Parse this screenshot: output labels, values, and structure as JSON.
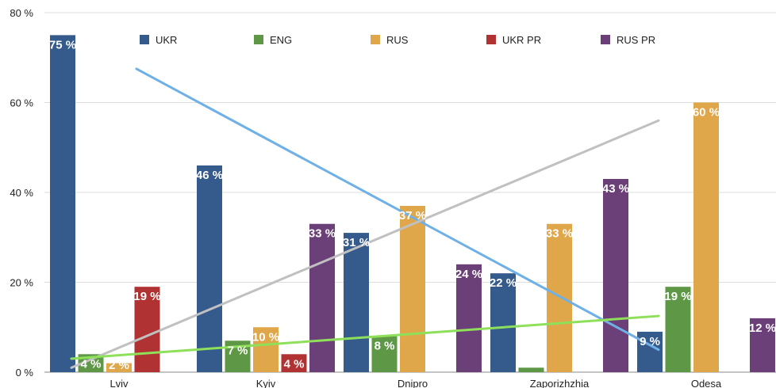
{
  "chart_data": {
    "type": "bar",
    "categories": [
      "Lviv",
      "Kyiv",
      "Dnipro",
      "Zaporizhzhia",
      "Odesa"
    ],
    "ylim": [
      0,
      80
    ],
    "yticks": [
      0,
      20,
      40,
      60,
      80
    ],
    "ytick_labels": [
      "0 %",
      "20 %",
      "40 %",
      "60 %",
      "80 %"
    ],
    "grid": true,
    "legend": "top",
    "series": [
      {
        "name": "UKR",
        "color": "#355a8c",
        "values": [
          75,
          46,
          31,
          22,
          9
        ],
        "labels": [
          "75 %",
          "46 %",
          "31 %",
          "22 %",
          "9 %"
        ]
      },
      {
        "name": "ENG",
        "color": "#5e9846",
        "values": [
          4,
          7,
          8,
          1,
          19
        ],
        "labels": [
          "4 %",
          "7 %",
          "8 %",
          "",
          "19 %"
        ]
      },
      {
        "name": "RUS",
        "color": "#dfa64a",
        "values": [
          2,
          10,
          37,
          33,
          60
        ],
        "labels": [
          "2 %",
          "10 %",
          "37 %",
          "33 %",
          "60 %"
        ]
      },
      {
        "name": "UKR PR",
        "color": "#b03232",
        "values": [
          19,
          4,
          0,
          0,
          0
        ],
        "labels": [
          "19 %",
          "4 %",
          "",
          "",
          ""
        ]
      },
      {
        "name": "RUS PR",
        "color": "#6b3f78",
        "values": [
          0,
          33,
          24,
          43,
          12
        ],
        "labels": [
          "",
          "33 %",
          "24 %",
          "43 %",
          "12 %"
        ]
      }
    ],
    "trendlines": [
      {
        "series": "UKR",
        "color": "#6fb0e6",
        "from": [
          0,
          67.5
        ],
        "to": [
          4,
          5
        ]
      },
      {
        "series": "RUS",
        "color": "#c0c0c0",
        "from": [
          0,
          1
        ],
        "to": [
          4,
          56
        ]
      },
      {
        "series": "ENG",
        "color": "#8ee05a",
        "from": [
          0,
          3
        ],
        "to": [
          4,
          12.5
        ]
      }
    ]
  }
}
